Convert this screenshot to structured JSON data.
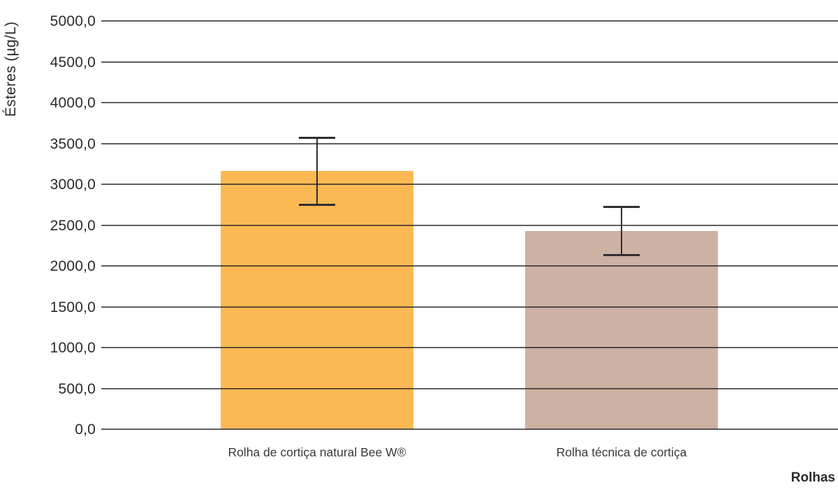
{
  "chart_data": {
    "type": "bar",
    "title": "",
    "categories": [
      "Rolha de cortiça natural Bee W®",
      "Rolha técnica de cortiça"
    ],
    "values": [
      3160,
      2430
    ],
    "errors": [
      415,
      300
    ],
    "bar_colors": [
      "#FCB953",
      "#CDB2A4"
    ],
    "ylabel": "Ésteres (µg/L)",
    "xlabel": "Rolhas",
    "ylim": [
      0,
      5000
    ],
    "ytick_step": 500,
    "ytick_labels": [
      "0,0",
      "500,0",
      "1000,0",
      "1500,0",
      "2000,0",
      "2500,0",
      "3000,0",
      "3500,0",
      "4000,0",
      "4500,0",
      "5000,0"
    ],
    "grid": true,
    "error_bars": true,
    "legend_position": "none"
  },
  "colors": {
    "background": "#ffffff",
    "text": "#2b2b2b",
    "category_text": "#3a3a3a",
    "gridline": "#282828",
    "error_bar": "#2f2f2f",
    "bar_natural": "#FCB953",
    "bar_tecnica": "#CDB2A4"
  }
}
